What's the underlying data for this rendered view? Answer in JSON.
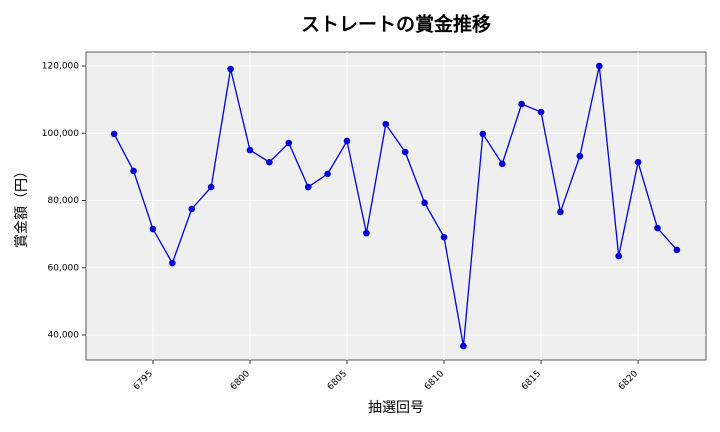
{
  "chart_data": {
    "type": "line",
    "title": "ストレートの賞金推移",
    "x_label": "抽選回号",
    "y_label": "賞金額（円）",
    "x": [
      6793,
      6794,
      6795,
      6796,
      6797,
      6798,
      6799,
      6800,
      6801,
      6802,
      6803,
      6804,
      6805,
      6806,
      6807,
      6808,
      6809,
      6810,
      6811,
      6812,
      6813,
      6814,
      6815,
      6816,
      6817,
      6818,
      6819,
      6820,
      6821,
      6822
    ],
    "series": [
      {
        "name": "賞金",
        "color": "#0000dd",
        "values": [
          99800,
          88800,
          71500,
          61400,
          77500,
          84000,
          119100,
          95000,
          91400,
          97100,
          84000,
          87900,
          97700,
          70300,
          102700,
          94400,
          79300,
          69100,
          36700,
          99800,
          90900,
          108700,
          106300,
          76600,
          93200,
          120000,
          63500,
          91400,
          71800,
          65300
        ]
      }
    ],
    "xlim": [
      6791.55,
      6823.5
    ],
    "xticks": [
      6795,
      6800,
      6805,
      6810,
      6815,
      6820
    ],
    "ylim": [
      32565,
      124164
    ],
    "yticks": [
      {
        "value": 40000,
        "label": "40,000"
      },
      {
        "value": 60000,
        "label": "60,000"
      },
      {
        "value": 80000,
        "label": "80,000"
      },
      {
        "value": 100000,
        "label": "100,000"
      },
      {
        "value": 120000,
        "label": "120,000"
      }
    ],
    "grid": true
  }
}
